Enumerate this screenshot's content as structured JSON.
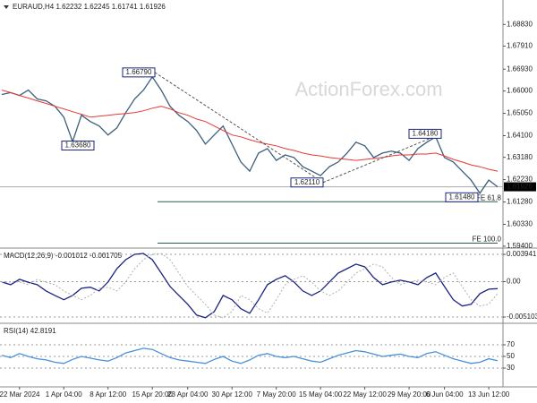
{
  "chart_data": [
    {
      "type": "line",
      "title": "EURAUD,H4  1.62232 1.62245 1.61741 1.61926",
      "grid": false,
      "categories": [
        null,
        null,
        "22 Mar 2024",
        null,
        null,
        null,
        null,
        "1 Apr 04:00",
        null,
        null,
        null,
        null,
        "8 Apr 12:00",
        null,
        null,
        null,
        null,
        "15 Apr 20:00",
        null,
        null,
        null,
        "23 Apr 04:00",
        null,
        null,
        null,
        null,
        "30 Apr 12:00",
        null,
        null,
        null,
        null,
        "7 May 20:00",
        null,
        null,
        null,
        null,
        "15 May 04:00",
        null,
        null,
        null,
        null,
        "22 May 12:00",
        null,
        null,
        null,
        null,
        "29 May 20:00",
        null,
        null,
        null,
        "6 Jun 04:00",
        null,
        null,
        null,
        null,
        "13 Jun 12:00",
        null
      ],
      "series": [
        {
          "color": "#3a5f7d",
          "values": [
            1.6585,
            1.6593,
            1.6581,
            1.6604,
            1.6566,
            1.6558,
            1.6535,
            1.6489,
            1.6385,
            1.6497,
            1.647,
            1.6451,
            1.6413,
            1.6443,
            1.6508,
            1.6566,
            1.6604,
            1.666,
            1.6604,
            1.6535,
            1.6497,
            1.647,
            1.6432,
            1.6374,
            1.6413,
            1.6451,
            1.6374,
            1.6298,
            1.6259,
            1.6336,
            1.6355,
            1.6305,
            1.6328,
            1.6317,
            1.6278,
            1.6259,
            1.624,
            1.6278,
            1.6298,
            1.6336,
            1.6382,
            1.6367,
            1.6317,
            1.6336,
            1.6344,
            1.6336,
            1.6305,
            1.6355,
            1.6382,
            1.6405,
            1.6317,
            1.6298,
            1.6259,
            1.6221,
            1.6165,
            1.6221,
            1.61926
          ]
        },
        {
          "color": "#e53935",
          "values": [
            1.6604,
            1.6593,
            1.6581,
            1.657,
            1.6558,
            1.6547,
            1.6535,
            1.6524,
            1.6512,
            1.6501,
            1.6489,
            1.6493,
            1.6497,
            1.6501,
            1.6504,
            1.6508,
            1.6516,
            1.6527,
            1.6535,
            1.6524,
            1.6508,
            1.6497,
            1.6481,
            1.647,
            1.6451,
            1.6432,
            1.6413,
            1.6405,
            1.6393,
            1.6382,
            1.6374,
            1.6367,
            1.6355,
            1.6347,
            1.6336,
            1.6328,
            1.6324,
            1.6317,
            1.6313,
            1.6309,
            1.6305,
            1.6309,
            1.6313,
            1.6317,
            1.6324,
            1.6328,
            1.6328,
            1.6332,
            1.6332,
            1.6336,
            1.6324,
            1.6309,
            1.6298,
            1.6286,
            1.6278,
            1.6267,
            1.6259
          ]
        }
      ],
      "ylim": [
        1.5932,
        1.6987
      ],
      "yticks": [
        {
          "value": 1.6883,
          "label": "1.68830"
        },
        {
          "value": 1.6791,
          "label": "1.67910"
        },
        {
          "value": 1.6693,
          "label": "1.66930"
        },
        {
          "value": 1.66,
          "label": "1.66000"
        },
        {
          "value": 1.6505,
          "label": "1.65050"
        },
        {
          "value": 1.641,
          "label": "1.64100"
        },
        {
          "value": 1.6318,
          "label": "1.63180"
        },
        {
          "value": 1.6223,
          "label": "1.62230"
        },
        {
          "value": 1.6128,
          "label": "1.61280"
        },
        {
          "value": 1.6033,
          "label": "1.60330"
        },
        {
          "value": 1.594,
          "label": "1.59400"
        }
      ],
      "last_price": {
        "value": 1.61926,
        "label": "1.61926"
      },
      "annotations": [
        {
          "value": 1.6679,
          "label": "1.66790"
        },
        {
          "value": 1.6368,
          "label": "1.63680"
        },
        {
          "value": 1.6211,
          "label": "1.62110"
        },
        {
          "value": 1.6418,
          "label": "1.64180"
        },
        {
          "value": 1.6148,
          "label": "1.61480"
        }
      ],
      "levels": [
        {
          "value": 1.6129,
          "label": "FE 61.8"
        },
        {
          "value": 1.5953,
          "label": "FE 100.0"
        }
      ]
    },
    {
      "type": "line",
      "title": "MACD(12,26,9) -0.001012 -0.001705",
      "grid": true,
      "series": [
        {
          "color": "#1a237e",
          "values": [
            -5e-05,
            -0.00044,
            0.00034,
            -0.0001,
            -0.00044,
            -0.00134,
            -0.00199,
            -0.00261,
            -0.00199,
            -0.00095,
            -0.0008,
            -0.00134,
            -5e-05,
            0.00188,
            0.00317,
            0.00394,
            0.00407,
            0.00317,
            0.00124,
            -0.0007,
            -0.00199,
            -0.00327,
            -0.00482,
            -0.00521,
            -0.00431,
            -0.00199,
            -0.00261,
            -0.0039,
            -0.00456,
            -0.00261,
            -0.00044,
            0.00034,
            0.00085,
            -5e-05,
            -0.00134,
            -0.00199,
            -0.00134,
            -5e-05,
            0.00124,
            0.00188,
            0.00253,
            0.00214,
            0.00059,
            -0.00044,
            -5e-05,
            0.00021,
            -5e-05,
            -0.00044,
            0.00059,
            0.00124,
            -0.0007,
            -0.00261,
            -0.00351,
            -0.00327,
            -0.00173,
            -0.00108,
            -0.001012
          ]
        },
        {
          "color": "#b0b0b0",
          "values": [
            -5e-05,
            -5e-05,
            -5e-05,
            -0.00044,
            0.00034,
            -0.0001,
            -0.00044,
            -0.00134,
            -0.00199,
            -0.00261,
            -0.00199,
            -0.00095,
            -0.0008,
            -0.00134,
            -5e-05,
            0.00188,
            0.00317,
            0.00394,
            0.00407,
            0.00317,
            0.00124,
            -0.0007,
            -0.00199,
            -0.00327,
            -0.00482,
            -0.00521,
            -0.00431,
            -0.00199,
            -0.00261,
            -0.0039,
            -0.00456,
            -0.00261,
            -0.00044,
            0.00034,
            0.00085,
            -5e-05,
            -0.00134,
            -0.00199,
            -0.00134,
            -5e-05,
            0.00124,
            0.00188,
            0.00253,
            0.00214,
            0.00059,
            -0.00044,
            -5e-05,
            0.00021,
            -5e-05,
            -0.00044,
            0.00059,
            0.00124,
            -0.0007,
            -0.00261,
            -0.00351,
            -0.00327,
            -0.001705
          ]
        }
      ],
      "ylim": [
        -0.00588,
        0.00472
      ],
      "yticks": [
        0.003941,
        {
          "value": 0,
          "label": "0.00"
        },
        -0.005103
      ]
    },
    {
      "type": "line",
      "title": "RSI(14) 42.8191",
      "grid": true,
      "series": [
        {
          "color": "#4a90d9",
          "values": [
            52,
            48,
            55,
            50,
            46,
            44,
            40,
            38,
            45,
            50,
            47,
            44,
            42,
            48,
            56,
            60,
            64,
            62,
            55,
            48,
            44,
            42,
            40,
            38,
            45,
            50,
            42,
            38,
            44,
            52,
            55,
            50,
            48,
            50,
            46,
            42,
            40,
            46,
            52,
            56,
            60,
            58,
            54,
            50,
            52,
            54,
            50,
            48,
            55,
            58,
            52,
            46,
            42,
            38,
            40,
            46,
            42.8191
          ]
        }
      ],
      "ylim": [
        0,
        100
      ],
      "yticks": [
        30,
        50,
        70
      ]
    }
  ],
  "watermark": "ActionForex.com"
}
